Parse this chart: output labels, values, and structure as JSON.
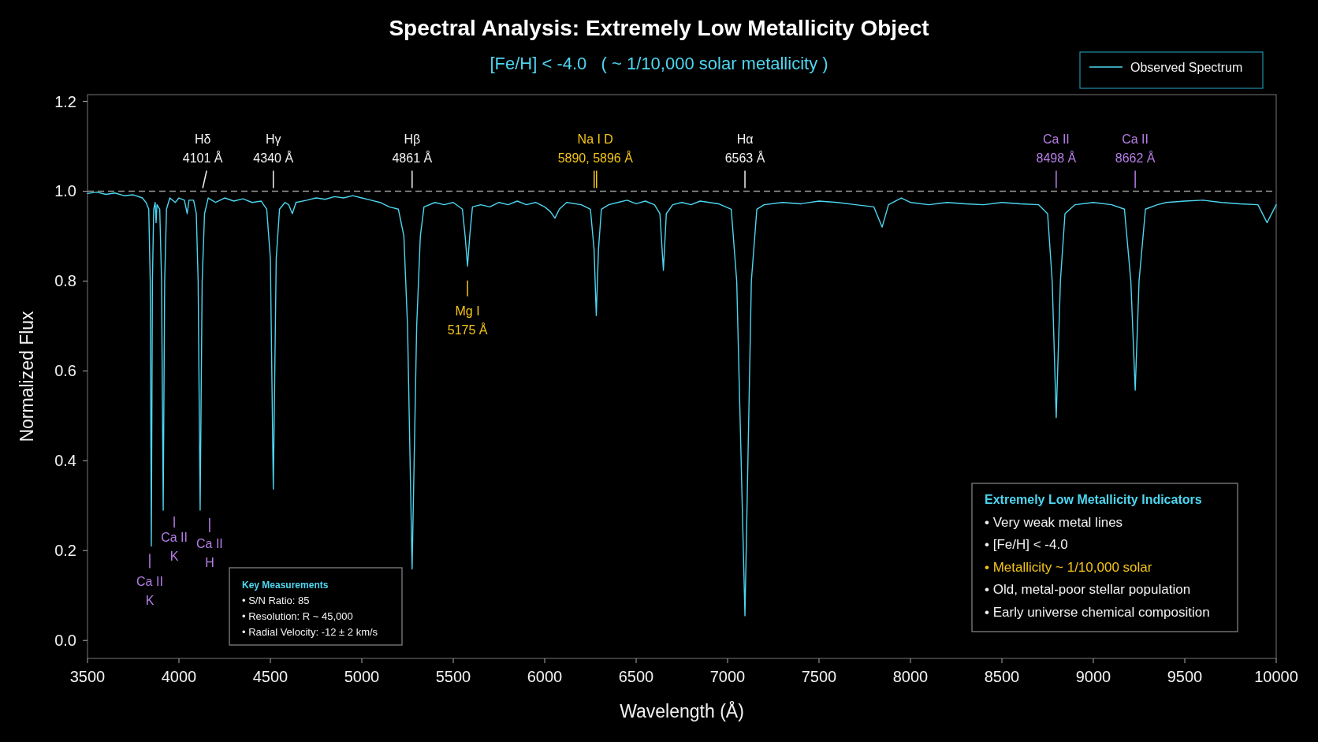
{
  "chart_data": {
    "type": "line",
    "title": "Spectral Analysis: Extremely Low Metallicity Object",
    "subtitle": "[Fe/H] < -4.0   ( ~ 1/10,000 solar metallicity )",
    "xlabel": "Wavelength (Å)",
    "ylabel": "Normalized Flux",
    "xlim": [
      3500,
      10000
    ],
    "xticks": [
      3500,
      4000,
      4500,
      5000,
      5500,
      6000,
      6500,
      7000,
      7500,
      8000,
      8500,
      9000,
      9500,
      10000
    ],
    "ylim": [
      -0.04,
      1.215
    ],
    "yticks": [
      {
        "value": 0,
        "label": "0.0"
      },
      0.2,
      0.4,
      0.6,
      0.8,
      {
        "value": 1,
        "label": "1.0"
      },
      1.2
    ],
    "grid": false,
    "legend": "top right",
    "line_style": "solid",
    "marker": "none",
    "ref_lines": [
      {
        "axis": "y",
        "value": 1.0,
        "color": "#9a9a9a",
        "line_style": "dashed"
      }
    ],
    "series": [
      {
        "name": "Observed Spectrum",
        "color": "#4dd6f0",
        "x": [
          3500,
          3550,
          3600,
          3650,
          3700,
          3750,
          3800,
          3820,
          3835,
          3843,
          3849,
          3855,
          3862,
          3870,
          3875,
          3880,
          3895,
          3905,
          3914,
          3922,
          3932,
          3950,
          3980,
          4000,
          4030,
          4045,
          4055,
          4080,
          4095,
          4105,
          4116,
          4127,
          4140,
          4160,
          4200,
          4250,
          4300,
          4350,
          4400,
          4450,
          4480,
          4500,
          4516,
          4532,
          4550,
          4580,
          4600,
          4620,
          4640,
          4700,
          4750,
          4800,
          4850,
          4900,
          4950,
          5000,
          5050,
          5100,
          5150,
          5200,
          5230,
          5250,
          5275,
          5300,
          5320,
          5340,
          5400,
          5450,
          5500,
          5550,
          5565,
          5578,
          5590,
          5605,
          5650,
          5700,
          5750,
          5800,
          5850,
          5900,
          5950,
          6000,
          6030,
          6056,
          6080,
          6120,
          6200,
          6250,
          6270,
          6282,
          6294,
          6310,
          6350,
          6400,
          6450,
          6500,
          6550,
          6600,
          6630,
          6649,
          6665,
          6700,
          6750,
          6800,
          6850,
          6900,
          6950,
          7020,
          7050,
          7095,
          7130,
          7160,
          7200,
          7300,
          7400,
          7500,
          7600,
          7700,
          7800,
          7845,
          7880,
          7950,
          8000,
          8100,
          8200,
          8300,
          8400,
          8500,
          8600,
          8700,
          8750,
          8775,
          8797,
          8820,
          8845,
          8900,
          9000,
          9100,
          9170,
          9205,
          9229,
          9250,
          9285,
          9350,
          9400,
          9500,
          9600,
          9700,
          9800,
          9900,
          9950,
          10000
        ],
        "values": [
          0.995,
          0.998,
          0.993,
          0.996,
          0.99,
          0.992,
          0.985,
          0.975,
          0.96,
          0.8,
          0.21,
          0.8,
          0.96,
          0.975,
          0.93,
          0.97,
          0.96,
          0.8,
          0.29,
          0.8,
          0.96,
          0.985,
          0.975,
          0.985,
          0.98,
          0.95,
          0.98,
          0.98,
          0.95,
          0.8,
          0.29,
          0.8,
          0.95,
          0.985,
          0.975,
          0.985,
          0.978,
          0.983,
          0.975,
          0.978,
          0.96,
          0.85,
          0.337,
          0.85,
          0.96,
          0.975,
          0.97,
          0.95,
          0.975,
          0.98,
          0.985,
          0.982,
          0.988,
          0.985,
          0.99,
          0.985,
          0.98,
          0.975,
          0.965,
          0.96,
          0.9,
          0.7,
          0.159,
          0.7,
          0.9,
          0.965,
          0.975,
          0.97,
          0.975,
          0.96,
          0.9,
          0.833,
          0.9,
          0.965,
          0.97,
          0.965,
          0.975,
          0.97,
          0.978,
          0.97,
          0.975,
          0.965,
          0.955,
          0.94,
          0.96,
          0.975,
          0.97,
          0.96,
          0.87,
          0.723,
          0.87,
          0.96,
          0.97,
          0.975,
          0.98,
          0.972,
          0.978,
          0.97,
          0.95,
          0.824,
          0.95,
          0.97,
          0.975,
          0.97,
          0.978,
          0.975,
          0.972,
          0.96,
          0.8,
          0.055,
          0.8,
          0.96,
          0.97,
          0.975,
          0.972,
          0.978,
          0.975,
          0.97,
          0.965,
          0.92,
          0.97,
          0.985,
          0.975,
          0.97,
          0.975,
          0.972,
          0.97,
          0.975,
          0.972,
          0.97,
          0.95,
          0.8,
          0.496,
          0.8,
          0.95,
          0.97,
          0.975,
          0.97,
          0.96,
          0.8,
          0.557,
          0.8,
          0.96,
          0.97,
          0.975,
          0.978,
          0.98,
          0.975,
          0.972,
          0.97,
          0.93,
          0.97
        ]
      }
    ],
    "annotations": [
      {
        "text": "Hδ\n4101 Å",
        "x": 4130,
        "y": 1.0
      },
      {
        "text": "Hγ\n4340 Å",
        "x": 4516,
        "y": 1.0
      },
      {
        "text": "Hβ\n4861 Å",
        "x": 5275,
        "y": 1.0
      },
      {
        "text": "Na I D\n5890, 5896 Å",
        "x": 6277,
        "y": 1.0
      },
      {
        "text": "Hα\n6563 Å",
        "x": 7095,
        "y": 1.0
      },
      {
        "text": "Ca II\n8498 Å",
        "x": 8797,
        "y": 1.0
      },
      {
        "text": "Ca II\n8662 Å",
        "x": 9229,
        "y": 1.0
      },
      {
        "text": "Mg I\n5175 Å",
        "x": 5578,
        "y": 0.833
      },
      {
        "text": "Ca II\nK",
        "x": 3849,
        "y": 0.21
      },
      {
        "text": "Ca II\nK",
        "x": 3914,
        "y": 0.29
      },
      {
        "text": "Ca II\nH",
        "x": 4116,
        "y": 0.29
      },
      "Key Measurements",
      "• S/N Ratio: 85",
      "• Resolution: R ~ 45,000",
      "• Radial Velocity: -12 ± 2 km/s",
      "Extremely Low Metallicity Indicators",
      "• Very weak metal lines",
      "• [Fe/H] < -4.0",
      "• Metallicity ~ 1/10,000 solar",
      "• Old, metal-poor stellar population",
      "• Early universe chemical composition"
    ]
  }
}
